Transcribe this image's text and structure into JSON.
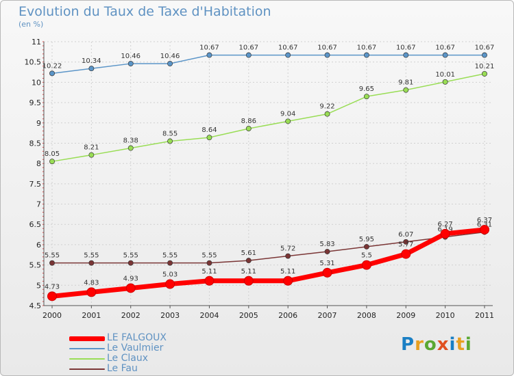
{
  "chart_data": {
    "type": "line",
    "title": "Evolution du Taux de Taxe d'Habitation",
    "subtitle": "(en %)",
    "x": [
      "2000",
      "2001",
      "2002",
      "2003",
      "2004",
      "2005",
      "2006",
      "2007",
      "2008",
      "2009",
      "2010",
      "2011"
    ],
    "ylim": [
      4.5,
      11
    ],
    "yticks": [
      "4.5",
      "5",
      "5.5",
      "6",
      "6.5",
      "7",
      "7.5",
      "8",
      "8.5",
      "9",
      "9.5",
      "10",
      "10.5",
      "11"
    ],
    "grid": true,
    "legend_position": "bottom-left",
    "series": [
      {
        "name": "LE FALGOUX",
        "color": "#ff0000",
        "values": [
          4.73,
          4.83,
          4.93,
          5.03,
          5.11,
          5.11,
          5.11,
          5.31,
          5.5,
          5.77,
          6.27,
          6.37
        ],
        "labels": [
          "4.73",
          "4.83",
          "4.93",
          "5.03",
          "5.11",
          "5.11",
          "5.11",
          "5.31",
          "5.5",
          "5.77",
          "6.27",
          "6.37"
        ]
      },
      {
        "name": "Le Vaulmier",
        "color": "#5b95c8",
        "values": [
          10.22,
          10.34,
          10.46,
          10.46,
          10.67,
          10.67,
          10.67,
          10.67,
          10.67,
          10.67,
          10.67,
          10.67
        ],
        "labels": [
          "10.22",
          "10.34",
          "10.46",
          "10.46",
          "10.67",
          "10.67",
          "10.67",
          "10.67",
          "10.67",
          "10.67",
          "10.67",
          "10.67"
        ]
      },
      {
        "name": "Le Claux",
        "color": "#99dd55",
        "values": [
          8.05,
          8.21,
          8.38,
          8.55,
          8.64,
          8.86,
          9.04,
          9.22,
          9.65,
          9.81,
          10.01,
          10.21
        ],
        "labels": [
          "8.05",
          "8.21",
          "8.38",
          "8.55",
          "8.64",
          "8.86",
          "9.04",
          "9.22",
          "9.65",
          "9.81",
          "10.01",
          "10.21"
        ]
      },
      {
        "name": "Le Fau",
        "color": "#7a3535",
        "values": [
          5.55,
          5.55,
          5.55,
          5.55,
          5.55,
          5.61,
          5.72,
          5.83,
          5.95,
          6.07,
          6.19,
          6.31
        ],
        "labels": [
          "5.55",
          "5.55",
          "5.55",
          "5.55",
          "5.55",
          "5.61",
          "5.72",
          "5.83",
          "5.95",
          "6.07",
          "6.19",
          "6.31"
        ]
      }
    ]
  },
  "logo": {
    "letters": [
      "P",
      "r",
      "o",
      "x",
      "i",
      "t",
      "i"
    ],
    "colors": [
      "#1a7fc4",
      "#e8a020",
      "#5aa832",
      "#e05020",
      "#1a7fc4",
      "#e8a020",
      "#5aa832"
    ]
  }
}
